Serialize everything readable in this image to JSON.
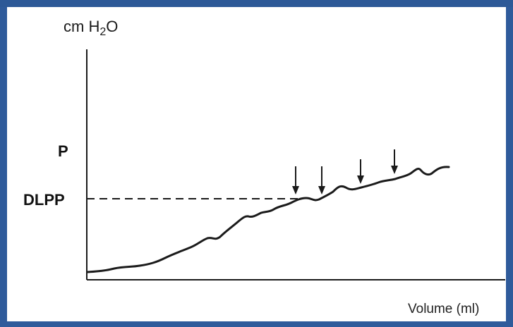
{
  "chart_data": {
    "type": "line",
    "title": "",
    "ylabel": {
      "prefix": "cm H",
      "sub": "2",
      "suffix": "O"
    },
    "xlabel": "Volume (ml)",
    "y_markers": [
      {
        "label": "P",
        "bold": true
      },
      {
        "label": "DLPP",
        "bold": true,
        "dashed_line": true
      }
    ],
    "series": [
      {
        "values_note_for_script_only": null
      }
    ],
    "arrows": 4,
    "grid": false,
    "colors": {
      "line": "#1b1b1b",
      "border": "#2f5b9b"
    }
  }
}
